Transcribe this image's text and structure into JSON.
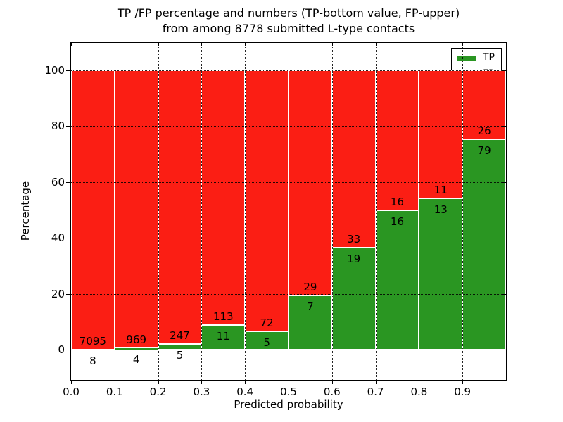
{
  "figure": {
    "title_line1": "TP /FP percentage and numbers (TP-bottom value, FP-upper)",
    "title_line2": "from among 8778 submitted L-type contacts",
    "xlabel": "Predicted probability",
    "ylabel": "Percentage"
  },
  "chart_data": {
    "type": "bar",
    "stacked": true,
    "title": "TP /FP percentage and numbers (TP-bottom value, FP-upper)\nfrom among 8778 submitted L-type contacts",
    "xlabel": "Predicted probability",
    "ylabel": "Percentage",
    "total_contacts": 8778,
    "bin_starts": [
      0.0,
      0.1,
      0.2,
      0.3,
      0.4,
      0.5,
      0.6,
      0.7,
      0.8,
      0.9
    ],
    "bin_width": 0.1,
    "x_tick_labels": [
      "0.0",
      "0.1",
      "0.2",
      "0.3",
      "0.4",
      "0.5",
      "0.6",
      "0.7",
      "0.8",
      "0.9"
    ],
    "y_ticks": [
      0,
      20,
      40,
      60,
      80,
      100
    ],
    "xlim": [
      0,
      1
    ],
    "ylim": [
      -11,
      110
    ],
    "grid": "dotted",
    "legend_position": "upper-right",
    "bar_edge_color": "#ffffff",
    "background": "#ffffff",
    "text_color": "#000000",
    "series": [
      {
        "name": "TP",
        "color": "#2a9622",
        "counts": [
          8,
          4,
          5,
          11,
          5,
          7,
          19,
          16,
          13,
          79
        ],
        "percent_of_bin": [
          0.11,
          0.41,
          1.98,
          8.87,
          6.49,
          19.44,
          36.54,
          50.0,
          54.17,
          75.24
        ]
      },
      {
        "name": "FP",
        "color": "#fb1e14",
        "counts": [
          7095,
          969,
          247,
          113,
          72,
          29,
          33,
          16,
          11,
          26
        ],
        "percent_of_bin": [
          99.89,
          99.59,
          98.02,
          91.13,
          93.51,
          80.56,
          63.46,
          50.0,
          45.83,
          24.76
        ]
      }
    ]
  }
}
